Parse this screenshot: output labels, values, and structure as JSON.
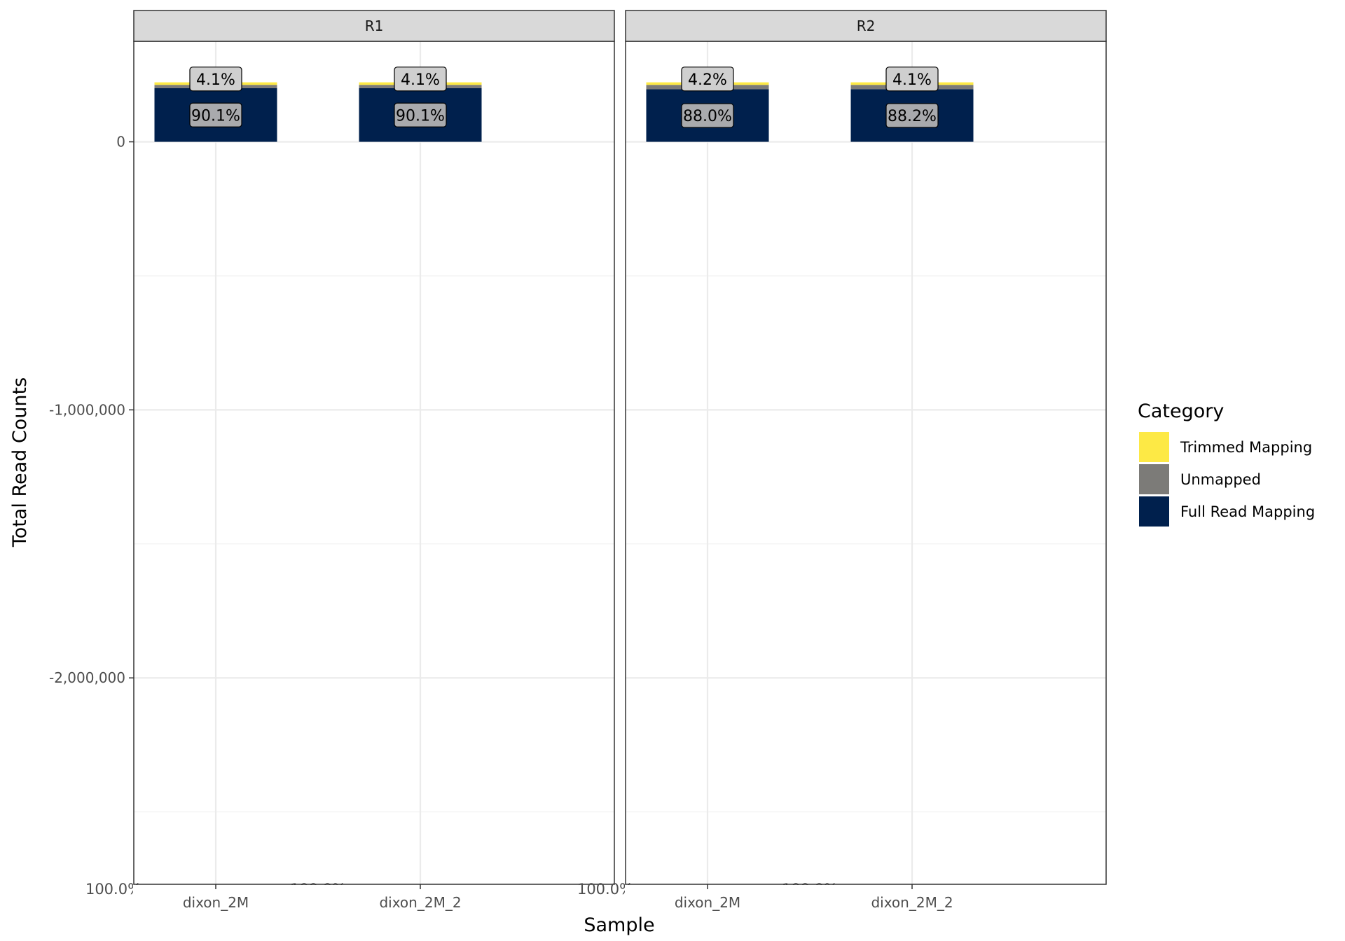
{
  "chart_data": {
    "type": "bar",
    "stacked": true,
    "facets": [
      "R1",
      "R2"
    ],
    "categories": [
      "dixon_2M",
      "dixon_2M_2"
    ],
    "xlabel": "Sample",
    "ylabel": "Total Read Counts",
    "ylim": [
      -2770000,
      375000
    ],
    "y_ticks": [
      0,
      -1000000,
      -2000000
    ],
    "y_tick_labels": [
      "0",
      "-1,000,000",
      "-2,000,000"
    ],
    "grid": true,
    "legend": {
      "title": "Category",
      "position": "right",
      "entries": [
        {
          "name": "Trimmed Mapping",
          "color": "#FDE945"
        },
        {
          "name": "Unmapped",
          "color": "#7C7B78"
        },
        {
          "name": "Full Read Mapping",
          "color": "#00204D"
        }
      ]
    },
    "series": [
      {
        "name": "Full Read Mapping",
        "color": "#00204D",
        "values": {
          "R1": [
            200000,
            200000
          ],
          "R2": [
            196000,
            196500
          ]
        },
        "labels": {
          "R1": [
            "90.1%",
            "90.1%"
          ],
          "R2": [
            "88.0%",
            "88.2%"
          ]
        }
      },
      {
        "name": "Unmapped",
        "color": "#7C7B78",
        "values": {
          "R1": [
            12500,
            12500
          ],
          "R2": [
            16500,
            16000
          ]
        },
        "labels": {
          "R1": [
            "",
            ""
          ],
          "R2": [
            "",
            ""
          ]
        }
      },
      {
        "name": "Trimmed Mapping",
        "color": "#FDE945",
        "values": {
          "R1": [
            9500,
            9500
          ],
          "R2": [
            9500,
            9500
          ]
        },
        "labels": {
          "R1": [
            "4.1%",
            "4.1%"
          ],
          "R2": [
            "4.2%",
            "4.1%"
          ]
        }
      }
    ],
    "bottom_labels": {
      "R1": [
        "100.0%",
        "100.0%"
      ],
      "R2": [
        "100.0%",
        "100.0%"
      ]
    }
  }
}
